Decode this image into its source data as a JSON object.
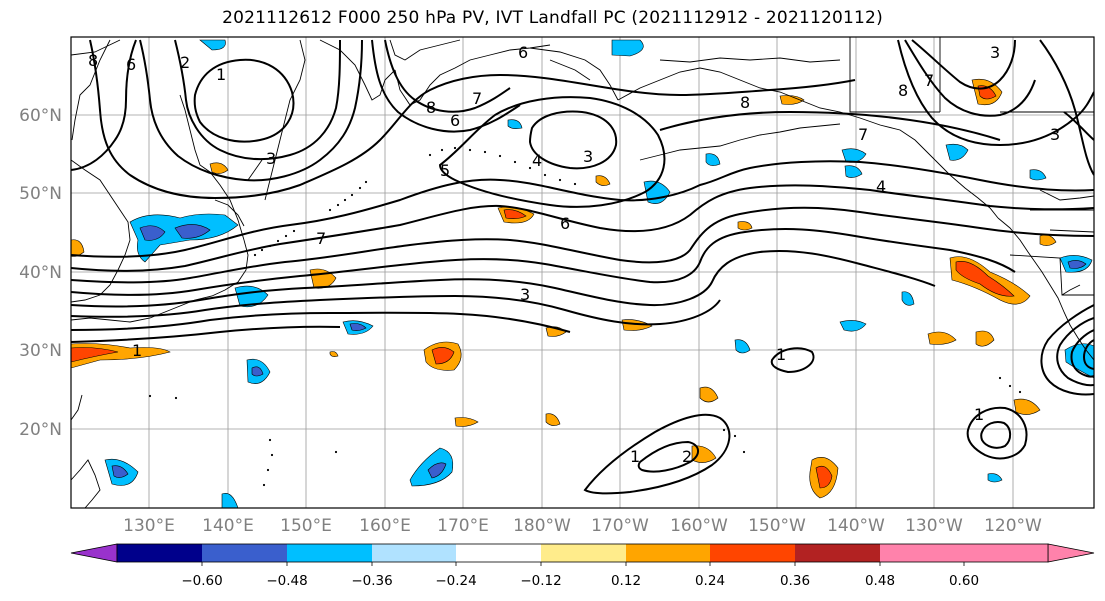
{
  "title": "2021112612 F000 250 hPa PV, IVT Landfall PC (2021112912 - 2021120112)",
  "map": {
    "lat_labels": [
      "60°N",
      "50°N",
      "40°N",
      "30°N",
      "20°N"
    ],
    "lon_labels": [
      "130°E",
      "140°E",
      "150°E",
      "160°E",
      "170°E",
      "180°W",
      "170°W",
      "160°W",
      "150°W",
      "140°W",
      "130°W",
      "120°W"
    ],
    "contour_labels": [
      "8",
      "6",
      "2",
      "1",
      "3",
      "8",
      "6",
      "7",
      "5",
      "4",
      "3",
      "6",
      "7",
      "3",
      "7",
      "6",
      "8",
      "8",
      "3",
      "7",
      "4",
      "3",
      "1",
      "1",
      "1",
      "1",
      "2"
    ]
  },
  "colorbar": {
    "ticks": [
      "−0.60",
      "−0.48",
      "−0.36",
      "−0.24",
      "−0.12",
      "0.12",
      "0.24",
      "0.36",
      "0.48",
      "0.60"
    ],
    "colors": [
      "#9932CC",
      "#00008B",
      "#3A5FCD",
      "#00BFFF",
      "#B0E2FF",
      "#FFFFFF",
      "#FFEC8B",
      "#FFA500",
      "#FF4500",
      "#B22222",
      "#FF82AB"
    ]
  }
}
